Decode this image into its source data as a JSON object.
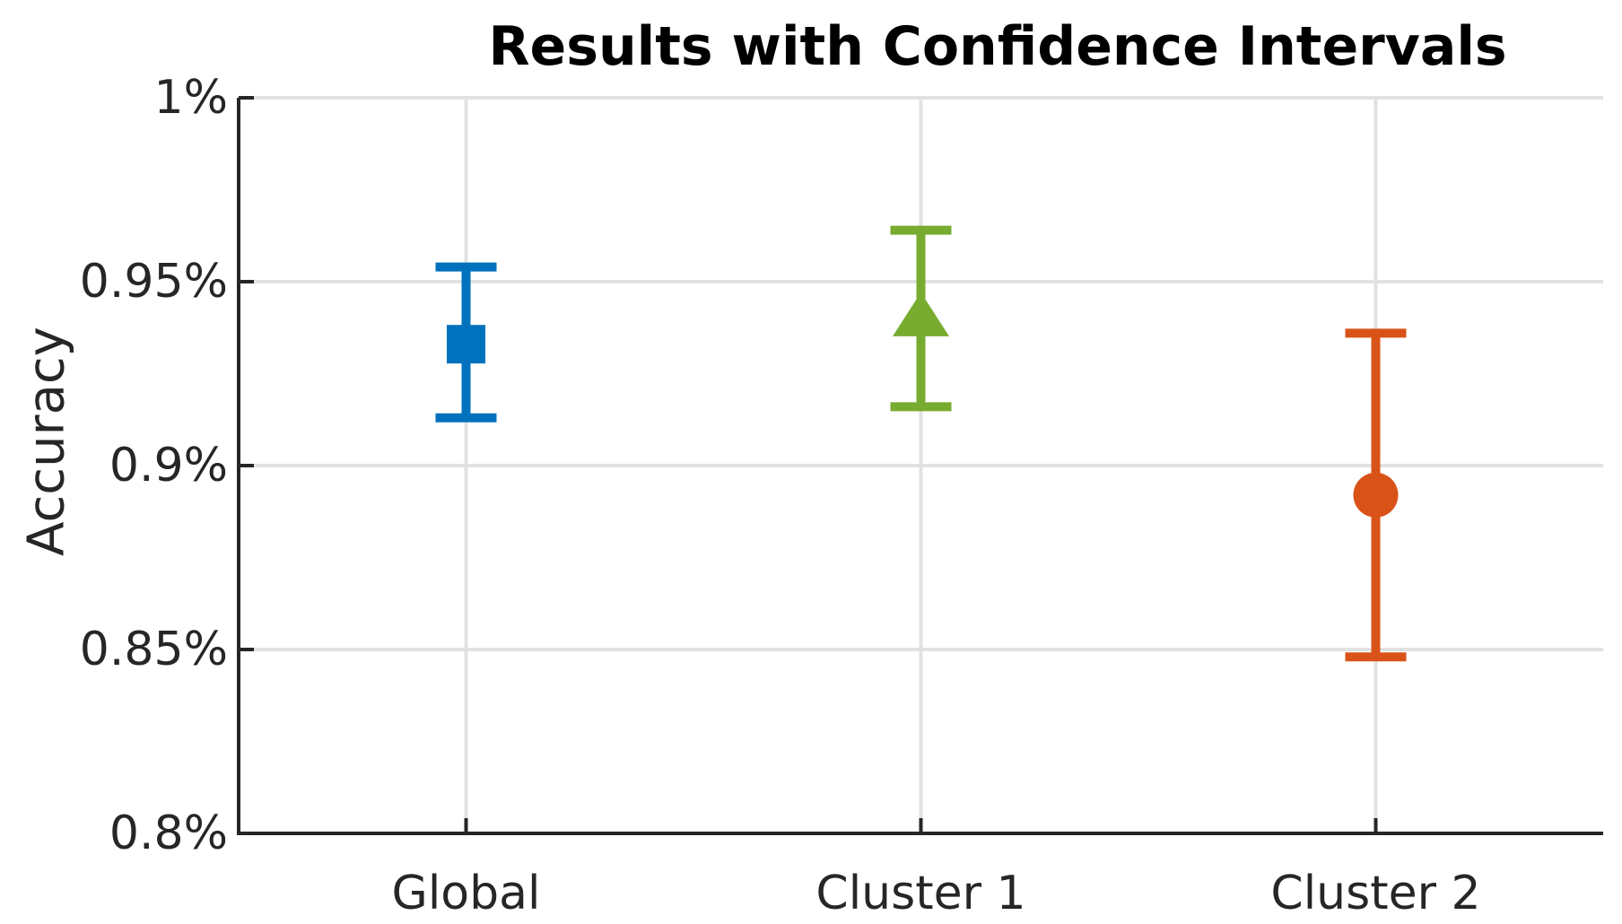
{
  "figure": {
    "background": "#FFFFFF"
  },
  "chart_data": {
    "type": "errorbar",
    "title": "Results with Confidence Intervals",
    "xlabel": "",
    "ylabel": "Accuracy",
    "categories": [
      "Global",
      "Cluster 1",
      "Cluster 2"
    ],
    "x_positions": [
      1,
      2,
      3
    ],
    "xlim": [
      0.5,
      3.5
    ],
    "ylim": [
      0.8,
      1.0
    ],
    "yticks": {
      "values": [
        0.8,
        0.85,
        0.9,
        0.95,
        1.0
      ],
      "labels": [
        "0.8%",
        "0.85%",
        "0.9%",
        "0.95%",
        "1%"
      ]
    },
    "grid": true,
    "legend": "none",
    "series": [
      {
        "name": "Global",
        "x": 1,
        "mean": 0.933,
        "ci_low": 0.913,
        "ci_high": 0.954,
        "marker": "square",
        "color": "#0072BD"
      },
      {
        "name": "Cluster 1",
        "x": 2,
        "mean": 0.941,
        "ci_low": 0.916,
        "ci_high": 0.964,
        "marker": "triangle-up",
        "color": "#77AC30"
      },
      {
        "name": "Cluster 2",
        "x": 3,
        "mean": 0.892,
        "ci_low": 0.848,
        "ci_high": 0.936,
        "marker": "circle",
        "color": "#D95319"
      }
    ],
    "style": {
      "axis_color": "#262626",
      "grid_color": "#E2E2E2",
      "title_color": "#000000",
      "plot_background": "#FFFFFF"
    }
  }
}
